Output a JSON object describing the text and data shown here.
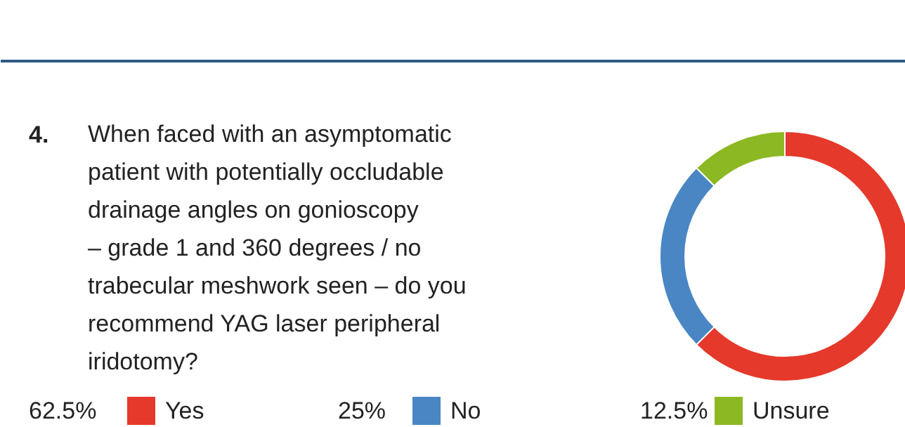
{
  "chart_data": {
    "type": "donut",
    "title": "When faced with an asymptomatic\npatient with potentially occludable\ndrainage angles on gonioscopy\n– grade 1 and 360 degrees / no\ntrabecular meshwork seen – do you\nrecommend YAG laser peripheral\niridotomy?",
    "annotations": [
      "4."
    ],
    "categories": [
      "Yes",
      "No",
      "Unsure"
    ],
    "values": [
      62.5,
      25,
      12.5
    ],
    "colors": [
      "#e5392b",
      "#4a86c4",
      "#8cb823"
    ],
    "value_labels": [
      "62.5%",
      "25%",
      "12.5%"
    ],
    "legend": "bottom"
  }
}
